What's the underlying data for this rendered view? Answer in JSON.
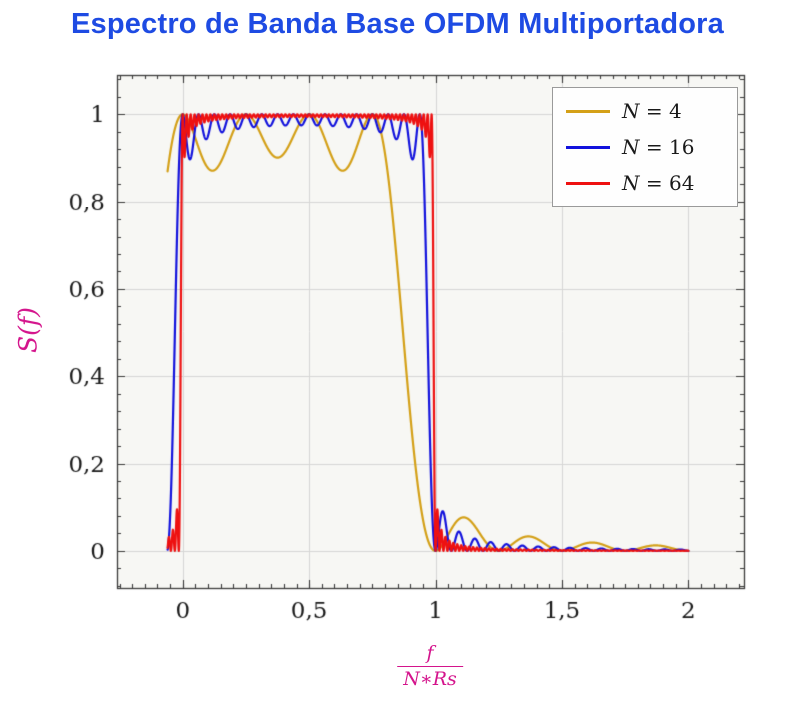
{
  "chart_data": {
    "type": "line",
    "title": "Espectro de Banda Base OFDM Multiportadora",
    "ylabel": "S(f)",
    "xlabel": {
      "numerator": "f",
      "denominator": "N∗Rs"
    },
    "xlim": [
      -0.26,
      2.22
    ],
    "ylim": [
      -0.085,
      1.09
    ],
    "x_ticks": [
      0,
      0.5,
      1,
      1.5,
      2
    ],
    "x_tick_labels": [
      "0",
      "0,5",
      "1",
      "1,5",
      "2"
    ],
    "y_ticks": [
      0,
      0.2,
      0.4,
      0.6,
      0.8,
      1
    ],
    "y_tick_labels": [
      "0",
      "0,2",
      "0,4",
      "0,6",
      "0,8",
      "1"
    ],
    "x_minor_step": 0.05,
    "y_minor_step": 0.04,
    "grid": "major",
    "legend_position": "top-right",
    "model": "S_N(x) = sum_{k=0}^{N-1} sinc^2(N*x - k), with sinc(t)=sin(pi*t)/(pi*t) and x = f/(N*Rs); passband ripple between ~0.87 and 1 over 0<=x<=(N-1)/N, nulls at x=m/N, decaying sidelobes for x>1",
    "x_data_range": [
      -0.06,
      2.0
    ],
    "samples_per_series": 3200,
    "series": [
      {
        "symbol": "N",
        "eq": "= 4",
        "label": "N = 4",
        "N": 4,
        "color": "#D4A017"
      },
      {
        "symbol": "N",
        "eq": "= 16",
        "label": "N = 16",
        "N": 16,
        "color": "#1212DD"
      },
      {
        "symbol": "N",
        "eq": "= 64",
        "label": "N = 64",
        "N": 64,
        "color": "#EE1111"
      }
    ],
    "colors": {
      "title": "#1E4BE3",
      "axis_label": "#D4148C",
      "grid": "#D6D6D6",
      "frame": "#3A3A3A",
      "tick_label": "#1A1A1A",
      "plot_bg": "#F7F7F4",
      "legend_border": "#9A9A9A",
      "legend_bg": "#FEFEFE"
    }
  }
}
